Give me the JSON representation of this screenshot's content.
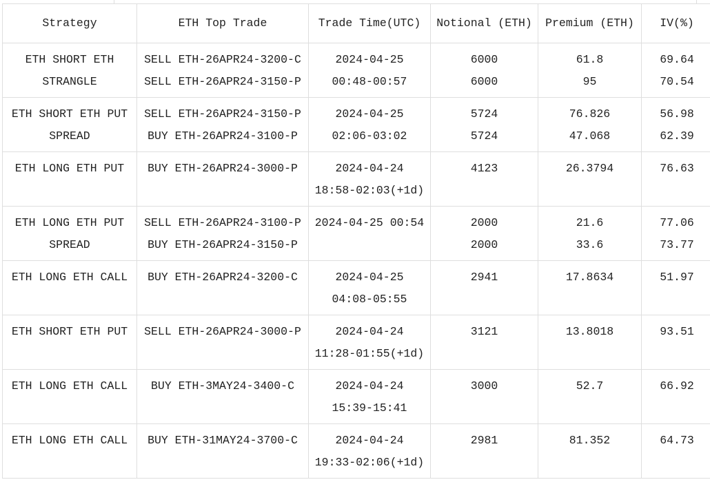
{
  "table": {
    "headers": [
      "Strategy",
      "ETH Top Trade",
      "Trade Time(UTC)",
      "Notional (ETH)",
      "Premium (ETH)",
      "IV(%)"
    ],
    "rows": [
      {
        "strategy": [
          "ETH SHORT ETH",
          "STRANGLE"
        ],
        "trade": [
          "SELL ETH-26APR24-3200-C",
          "SELL ETH-26APR24-3150-P"
        ],
        "time": [
          "2024-04-25",
          "00:48-00:57"
        ],
        "notional": [
          "6000",
          "6000"
        ],
        "premium": [
          "61.8",
          "95"
        ],
        "iv": [
          "69.64",
          "70.54"
        ]
      },
      {
        "strategy": [
          "ETH SHORT ETH PUT",
          "SPREAD"
        ],
        "trade": [
          "SELL ETH-26APR24-3150-P",
          "BUY ETH-26APR24-3100-P"
        ],
        "time": [
          "2024-04-25",
          "02:06-03:02"
        ],
        "notional": [
          "5724",
          "5724"
        ],
        "premium": [
          "76.826",
          "47.068"
        ],
        "iv": [
          "56.98",
          "62.39"
        ]
      },
      {
        "strategy": [
          "ETH LONG ETH PUT"
        ],
        "trade": [
          "BUY ETH-26APR24-3000-P"
        ],
        "time": [
          "2024-04-24",
          "18:58-02:03(+1d)"
        ],
        "notional": [
          "4123"
        ],
        "premium": [
          "26.3794"
        ],
        "iv": [
          "76.63"
        ]
      },
      {
        "strategy": [
          "ETH LONG ETH PUT",
          "SPREAD"
        ],
        "trade": [
          "SELL ETH-26APR24-3100-P",
          "BUY ETH-26APR24-3150-P"
        ],
        "time": [
          "2024-04-25 00:54"
        ],
        "notional": [
          "2000",
          "2000"
        ],
        "premium": [
          "21.6",
          "33.6"
        ],
        "iv": [
          "77.06",
          "73.77"
        ]
      },
      {
        "strategy": [
          "ETH LONG ETH CALL"
        ],
        "trade": [
          "BUY ETH-26APR24-3200-C"
        ],
        "time": [
          "2024-04-25",
          "04:08-05:55"
        ],
        "notional": [
          "2941"
        ],
        "premium": [
          "17.8634"
        ],
        "iv": [
          "51.97"
        ]
      },
      {
        "strategy": [
          "ETH SHORT ETH PUT"
        ],
        "trade": [
          "SELL ETH-26APR24-3000-P"
        ],
        "time": [
          "2024-04-24",
          "11:28-01:55(+1d)"
        ],
        "notional": [
          "3121"
        ],
        "premium": [
          "13.8018"
        ],
        "iv": [
          "93.51"
        ]
      },
      {
        "strategy": [
          "ETH LONG ETH CALL"
        ],
        "trade": [
          "BUY ETH-3MAY24-3400-C"
        ],
        "time": [
          "2024-04-24",
          "15:39-15:41"
        ],
        "notional": [
          "3000"
        ],
        "premium": [
          "52.7"
        ],
        "iv": [
          "66.92"
        ]
      },
      {
        "strategy": [
          "ETH LONG ETH CALL"
        ],
        "trade": [
          "BUY ETH-31MAY24-3700-C"
        ],
        "time": [
          "2024-04-24",
          "19:33-02:06(+1d)"
        ],
        "notional": [
          "2981"
        ],
        "premium": [
          "81.352"
        ],
        "iv": [
          "64.73"
        ]
      }
    ]
  }
}
